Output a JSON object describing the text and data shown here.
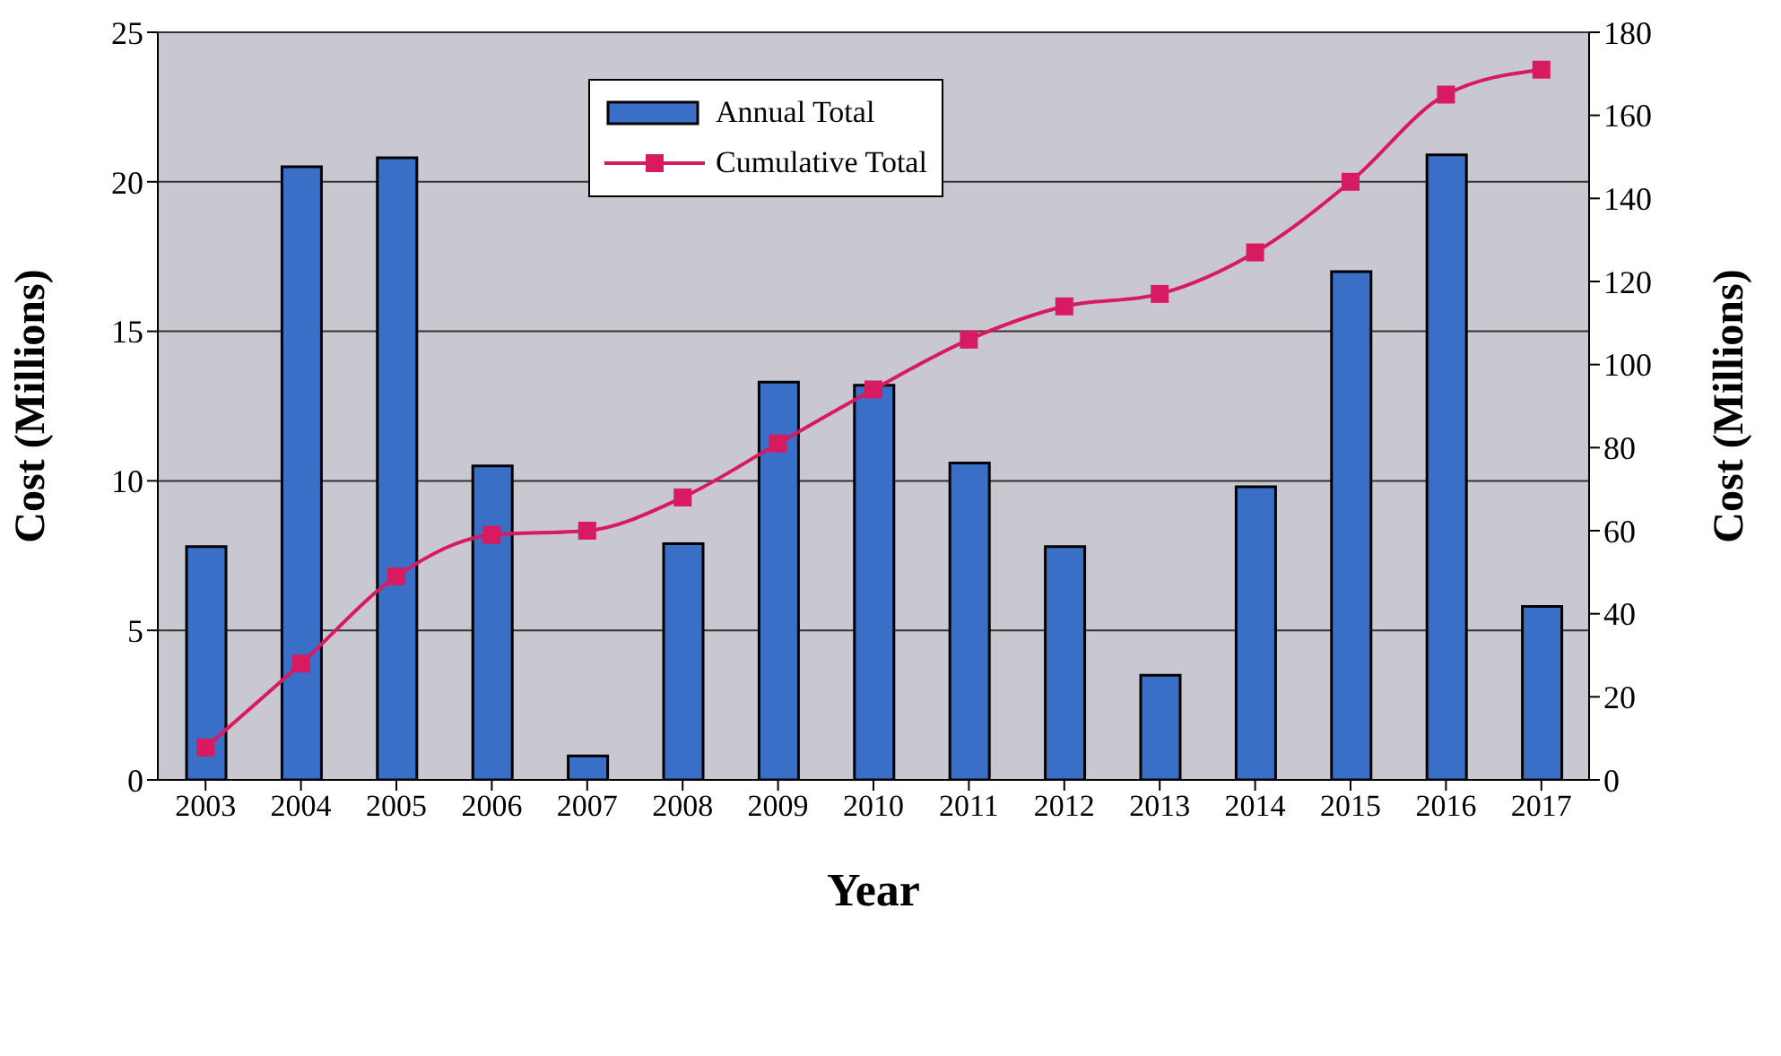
{
  "chart_data": {
    "type": "bar",
    "xlabel": "Year",
    "ylabel": "Cost (Millions)",
    "y2label": "Cost (Millions)",
    "categories": [
      "2003",
      "2004",
      "2005",
      "2006",
      "2007",
      "2008",
      "2009",
      "2010",
      "2011",
      "2012",
      "2013",
      "2014",
      "2015",
      "2016",
      "2017"
    ],
    "series": [
      {
        "name": "Annual Total",
        "color": "#3a6fc8",
        "values": [
          7.8,
          20.5,
          20.8,
          10.5,
          0.8,
          7.9,
          13.3,
          13.2,
          10.6,
          7.8,
          3.5,
          9.8,
          17,
          20.9,
          5.8
        ]
      },
      {
        "name": "Cumulative Total",
        "type": "line",
        "axis": "y2",
        "color": "#d81b60",
        "marker": "square",
        "values": [
          7.8,
          28,
          49,
          59,
          60,
          68,
          81,
          94,
          106,
          114,
          117,
          127,
          144,
          165,
          171
        ]
      }
    ],
    "ylim": [
      0,
      25
    ],
    "yticks": [
      0,
      5,
      10,
      15,
      20,
      25
    ],
    "y2lim": [
      0,
      180
    ],
    "y2ticks": [
      0,
      20,
      40,
      60,
      80,
      100,
      120,
      140,
      160,
      180
    ],
    "grid": "y",
    "legend": "top"
  }
}
